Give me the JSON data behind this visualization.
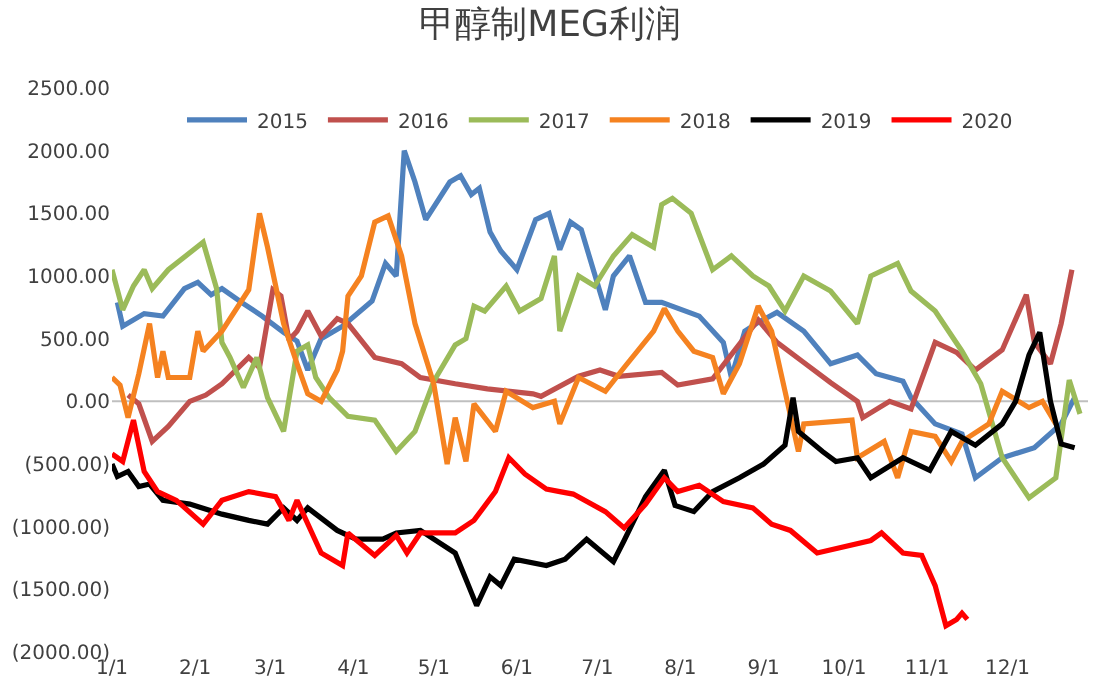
{
  "chart_data": {
    "type": "line",
    "title": "甲醇制MEG利润",
    "xlim": [
      "--01-01",
      "--12-31"
    ],
    "xticks": [
      {
        "value": "--01-01",
        "label": "1/1"
      },
      {
        "value": "--02-01",
        "label": "2/1"
      },
      {
        "value": "--03-01",
        "label": "3/1"
      },
      {
        "value": "--04-01",
        "label": "4/1"
      },
      {
        "value": "--05-01",
        "label": "5/1"
      },
      {
        "value": "--06-01",
        "label": "6/1"
      },
      {
        "value": "--07-01",
        "label": "7/1"
      },
      {
        "value": "--08-01",
        "label": "8/1"
      },
      {
        "value": "--09-01",
        "label": "9/1"
      },
      {
        "value": "--10-01",
        "label": "10/1"
      },
      {
        "value": "--11-01",
        "label": "11/1"
      },
      {
        "value": "--12-01",
        "label": "12/1"
      }
    ],
    "ylim": [
      -2000,
      2500
    ],
    "yticks": [
      {
        "value": 2500,
        "label": "2500.00"
      },
      {
        "value": 2000,
        "label": "2000.00"
      },
      {
        "value": 1500,
        "label": "1500.00"
      },
      {
        "value": 1000,
        "label": "1000.00"
      },
      {
        "value": 500,
        "label": "500.00"
      },
      {
        "value": 0,
        "label": "0.00"
      },
      {
        "value": -500,
        "label": "(500.00)"
      },
      {
        "value": -1000,
        "label": "(1000.00)"
      },
      {
        "value": -1500,
        "label": "(1500.00)"
      },
      {
        "value": -2000,
        "label": "(2000.00)"
      }
    ],
    "grid": false,
    "legend": "top",
    "marker": "none",
    "line_style": "solid",
    "ref_lines": [
      {
        "axis": "y",
        "value": 0,
        "color": "#bfbfbf"
      }
    ],
    "series": [
      {
        "name": "2015",
        "color": "#4f81bd",
        "x": [
          "--01-03",
          "--01-05",
          "--01-13",
          "--01-20",
          "--01-28",
          "--02-02",
          "--02-07",
          "--02-11",
          "--02-19",
          "--02-26",
          "--03-06",
          "--03-11",
          "--03-15",
          "--03-20",
          "--03-28",
          "--04-08",
          "--04-13",
          "--04-17",
          "--04-20",
          "--04-24",
          "--04-28",
          "--05-07",
          "--05-11",
          "--05-15",
          "--05-18",
          "--05-22",
          "--05-26",
          "--06-01",
          "--06-08",
          "--06-13",
          "--06-17",
          "--06-21",
          "--06-25",
          "--07-04",
          "--07-07",
          "--07-13",
          "--07-19",
          "--07-25",
          "--08-08",
          "--08-17",
          "--08-20",
          "--08-25",
          "--08-30",
          "--09-06",
          "--09-16",
          "--09-26",
          "--10-06",
          "--10-13",
          "--10-23",
          "--10-26",
          "--11-04",
          "--11-14",
          "--11-19",
          "--11-29",
          "--12-11",
          "--12-21",
          "--12-26"
        ],
        "values": [
          790,
          600,
          700,
          680,
          900,
          950,
          850,
          900,
          780,
          680,
          550,
          480,
          250,
          500,
          600,
          800,
          1100,
          1000,
          2000,
          1750,
          1450,
          1750,
          1800,
          1650,
          1700,
          1350,
          1200,
          1050,
          1450,
          1500,
          1210,
          1430,
          1370,
          730,
          1000,
          1160,
          790,
          790,
          680,
          470,
          190,
          560,
          630,
          710,
          560,
          300,
          370,
          220,
          160,
          30,
          -180,
          -260,
          -610,
          -450,
          -370,
          -180,
          30
        ]
      },
      {
        "name": "2016",
        "color": "#c0504d",
        "x": [
          "--01-07",
          "--01-11",
          "--01-16",
          "--01-22",
          "--01-30",
          "--02-05",
          "--02-11",
          "--02-21",
          "--02-25",
          "--03-02",
          "--03-05",
          "--03-08",
          "--03-11",
          "--03-15",
          "--03-20",
          "--03-26",
          "--03-30",
          "--04-09",
          "--04-19",
          "--04-26",
          "--05-09",
          "--05-21",
          "--06-07",
          "--06-10",
          "--06-24",
          "--07-02",
          "--07-09",
          "--07-25",
          "--07-31",
          "--08-13",
          "--08-30",
          "--09-06",
          "--09-16",
          "--09-26",
          "--10-06",
          "--10-08",
          "--10-18",
          "--10-26",
          "--11-04",
          "--11-12",
          "--11-19",
          "--11-29",
          "--12-08",
          "--12-11",
          "--12-17",
          "--12-21",
          "--12-25"
        ],
        "values": [
          50,
          -20,
          -320,
          -200,
          0,
          50,
          140,
          350,
          270,
          890,
          840,
          490,
          560,
          720,
          520,
          660,
          620,
          350,
          300,
          190,
          140,
          100,
          60,
          40,
          200,
          250,
          200,
          230,
          130,
          180,
          650,
          470,
          310,
          150,
          0,
          -130,
          0,
          -60,
          470,
          390,
          250,
          410,
          850,
          470,
          300,
          620,
          1050
        ]
      },
      {
        "name": "2017",
        "color": "#9bbb59",
        "x": [
          "--01-01",
          "--01-05",
          "--01-09",
          "--01-13",
          "--01-16",
          "--01-22",
          "--02-04",
          "--02-09",
          "--02-11",
          "--02-14",
          "--02-19",
          "--02-24",
          "--02-28",
          "--03-06",
          "--03-11",
          "--03-15",
          "--03-18",
          "--03-23",
          "--03-30",
          "--04-09",
          "--04-17",
          "--04-24",
          "--05-01",
          "--05-09",
          "--05-13",
          "--05-16",
          "--05-20",
          "--05-28",
          "--06-02",
          "--06-10",
          "--06-15",
          "--06-17",
          "--06-24",
          "--06-30",
          "--07-07",
          "--07-14",
          "--07-22",
          "--07-25",
          "--07-29",
          "--08-05",
          "--08-13",
          "--08-20",
          "--08-28",
          "--09-03",
          "--09-09",
          "--09-16",
          "--09-26",
          "--10-06",
          "--10-11",
          "--10-21",
          "--10-26",
          "--11-04",
          "--11-14",
          "--11-21",
          "--11-29",
          "--12-09",
          "--12-19",
          "--12-24",
          "--12-28"
        ],
        "values": [
          1050,
          730,
          920,
          1050,
          900,
          1050,
          1270,
          900,
          470,
          350,
          110,
          350,
          30,
          -240,
          400,
          450,
          190,
          30,
          -120,
          -150,
          -400,
          -240,
          160,
          450,
          500,
          760,
          720,
          920,
          720,
          820,
          1160,
          560,
          1000,
          920,
          1160,
          1330,
          1230,
          1570,
          1620,
          1500,
          1050,
          1160,
          1000,
          920,
          720,
          1000,
          880,
          620,
          1000,
          1100,
          880,
          720,
          400,
          140,
          -450,
          -770,
          -610,
          170,
          -100
        ]
      },
      {
        "name": "2018",
        "color": "#f58220",
        "x": [
          "--01-01",
          "--01-04",
          "--01-07",
          "--01-11",
          "--01-15",
          "--01-18",
          "--01-20",
          "--01-22",
          "--01-30",
          "--02-02",
          "--02-04",
          "--02-11",
          "--02-21",
          "--02-25",
          "--02-28",
          "--03-06",
          "--03-11",
          "--03-15",
          "--03-20",
          "--03-26",
          "--03-28",
          "--03-30",
          "--04-04",
          "--04-09",
          "--04-14",
          "--04-19",
          "--04-24",
          "--05-01",
          "--05-06",
          "--05-09",
          "--05-13",
          "--05-16",
          "--05-24",
          "--05-28",
          "--06-07",
          "--06-15",
          "--06-17",
          "--06-24",
          "--07-04",
          "--07-11",
          "--07-22",
          "--07-26",
          "--07-31",
          "--08-06",
          "--08-13",
          "--08-17",
          "--08-23",
          "--08-30",
          "--09-04",
          "--09-09",
          "--09-14",
          "--09-16",
          "--10-04",
          "--10-06",
          "--10-16",
          "--10-21",
          "--10-26",
          "--11-04",
          "--11-10",
          "--11-14",
          "--11-24",
          "--11-29",
          "--12-09",
          "--12-14",
          "--12-19"
        ],
        "values": [
          190,
          130,
          -130,
          220,
          620,
          190,
          400,
          190,
          190,
          560,
          400,
          560,
          890,
          1500,
          1230,
          620,
          300,
          60,
          0,
          250,
          400,
          840,
          1000,
          1430,
          1480,
          1160,
          620,
          140,
          -500,
          -130,
          -480,
          -20,
          -240,
          80,
          -50,
          0,
          -180,
          190,
          80,
          270,
          560,
          740,
          560,
          400,
          350,
          60,
          300,
          760,
          560,
          80,
          -400,
          -180,
          -150,
          -450,
          -320,
          -610,
          -240,
          -280,
          -480,
          -320,
          -180,
          80,
          -50,
          0,
          -180
        ]
      },
      {
        "name": "2019",
        "color": "#000000",
        "x": [
          "--01-01",
          "--01-03",
          "--01-07",
          "--01-11",
          "--01-15",
          "--01-20",
          "--01-30",
          "--02-11",
          "--02-21",
          "--02-28",
          "--03-06",
          "--03-11",
          "--03-15",
          "--03-26",
          "--04-02",
          "--04-12",
          "--04-17",
          "--04-26",
          "--05-09",
          "--05-13",
          "--05-17",
          "--05-22",
          "--05-26",
          "--05-31",
          "--06-12",
          "--06-19",
          "--06-27",
          "--07-07",
          "--07-11",
          "--07-19",
          "--07-26",
          "--07-30",
          "--08-06",
          "--08-13",
          "--08-23",
          "--09-01",
          "--09-09",
          "--09-12",
          "--09-14",
          "--09-23",
          "--09-28",
          "--10-06",
          "--10-11",
          "--10-23",
          "--11-02",
          "--11-10",
          "--11-19",
          "--11-29",
          "--12-04",
          "--12-09",
          "--12-13",
          "--12-17",
          "--12-21",
          "--12-26"
        ],
        "values": [
          -500,
          -600,
          -560,
          -680,
          -660,
          -790,
          -820,
          -900,
          -950,
          -980,
          -850,
          -950,
          -850,
          -1030,
          -1100,
          -1100,
          -1050,
          -1030,
          -1210,
          -1420,
          -1630,
          -1400,
          -1470,
          -1260,
          -1310,
          -1260,
          -1100,
          -1280,
          -1110,
          -760,
          -550,
          -830,
          -880,
          -720,
          -610,
          -500,
          -350,
          30,
          -240,
          -400,
          -480,
          -450,
          -610,
          -450,
          -550,
          -240,
          -350,
          -180,
          0,
          370,
          550,
          0,
          -340,
          -370
        ]
      },
      {
        "name": "2020",
        "color": "#ff0000",
        "x": [
          "--01-01",
          "--01-05",
          "--01-09",
          "--01-13",
          "--01-18",
          "--01-25",
          "--02-04",
          "--02-11",
          "--02-21",
          "--03-03",
          "--03-08",
          "--03-11",
          "--03-20",
          "--03-28",
          "--03-30",
          "--04-09",
          "--04-17",
          "--04-21",
          "--04-26",
          "--05-09",
          "--05-16",
          "--05-24",
          "--05-29",
          "--06-04",
          "--06-12",
          "--06-17",
          "--06-22",
          "--07-04",
          "--07-11",
          "--07-19",
          "--07-26",
          "--07-31",
          "--08-08",
          "--08-17",
          "--08-28",
          "--09-04",
          "--09-11",
          "--09-21",
          "--10-11",
          "--10-15",
          "--10-23",
          "--10-30",
          "--11-04",
          "--11-08",
          "--11-12",
          "--11-14",
          "--11-16"
        ],
        "values": [
          -420,
          -480,
          -150,
          -560,
          -720,
          -790,
          -980,
          -790,
          -720,
          -760,
          -950,
          -790,
          -1210,
          -1310,
          -1050,
          -1230,
          -1070,
          -1210,
          -1050,
          -1050,
          -950,
          -720,
          -450,
          -580,
          -700,
          -720,
          -740,
          -880,
          -1010,
          -820,
          -610,
          -720,
          -670,
          -800,
          -850,
          -980,
          -1030,
          -1210,
          -1110,
          -1050,
          -1210,
          -1230,
          -1470,
          -1790,
          -1740,
          -1690,
          -1740
        ]
      }
    ]
  }
}
